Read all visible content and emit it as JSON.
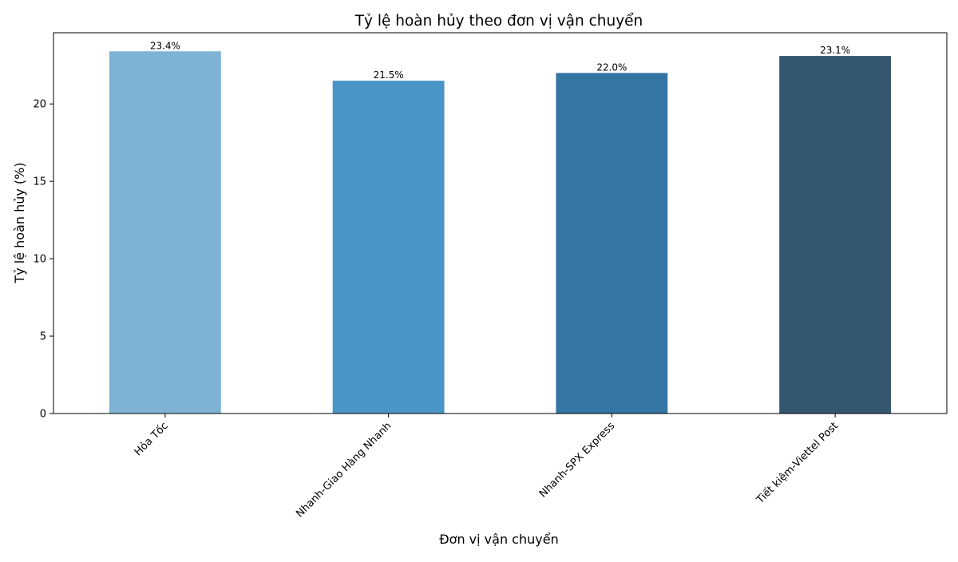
{
  "chart_data": {
    "type": "bar",
    "title": "Tỷ lệ hoàn hủy theo đơn vị vận chuyển",
    "xlabel": "Đơn vị vận chuyển",
    "ylabel": "Tỷ lệ hoàn hủy (%)",
    "categories": [
      "Hỏa Tốc",
      "Nhanh-Giao Hàng Nhanh",
      "Nhanh-SPX Express",
      "Tiết kiệm-Viettel Post"
    ],
    "values": [
      23.4,
      21.5,
      22.0,
      23.1
    ],
    "value_labels": [
      "23.4%",
      "21.5%",
      "22.0%",
      "23.1%"
    ],
    "bar_colors": [
      "#7fb3d6",
      "#4a95c8",
      "#3575a4",
      "#34566e"
    ],
    "yticks": [
      0,
      5,
      10,
      15,
      20
    ],
    "ylim": [
      0,
      24.6
    ],
    "grid": false,
    "legend": "none"
  }
}
